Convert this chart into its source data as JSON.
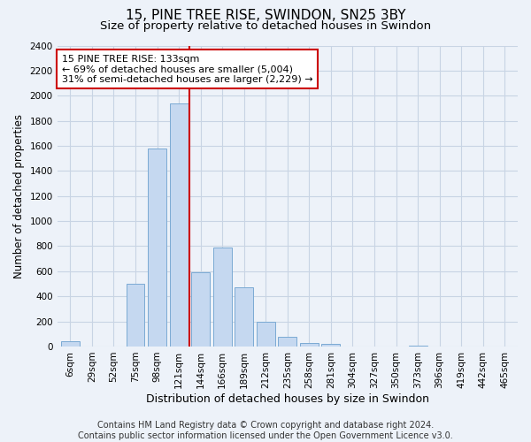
{
  "title": "15, PINE TREE RISE, SWINDON, SN25 3BY",
  "subtitle": "Size of property relative to detached houses in Swindon",
  "xlabel": "Distribution of detached houses by size in Swindon",
  "ylabel": "Number of detached properties",
  "categories": [
    "6sqm",
    "29sqm",
    "52sqm",
    "75sqm",
    "98sqm",
    "121sqm",
    "144sqm",
    "166sqm",
    "189sqm",
    "212sqm",
    "235sqm",
    "258sqm",
    "281sqm",
    "304sqm",
    "327sqm",
    "350sqm",
    "373sqm",
    "396sqm",
    "419sqm",
    "442sqm",
    "465sqm"
  ],
  "values": [
    40,
    0,
    0,
    500,
    1580,
    1940,
    590,
    790,
    470,
    195,
    80,
    30,
    20,
    0,
    0,
    0,
    10,
    0,
    0,
    0,
    0
  ],
  "bar_color": "#c5d8f0",
  "bar_edge_color": "#7baad4",
  "bar_edge_width": 0.7,
  "grid_color": "#c8d4e4",
  "background_color": "#edf2f9",
  "vline_color": "#cc0000",
  "annotation_line1": "15 PINE TREE RISE: 133sqm",
  "annotation_line2": "← 69% of detached houses are smaller (5,004)",
  "annotation_line3": "31% of semi-detached houses are larger (2,229) →",
  "annotation_box_color": "white",
  "annotation_box_edge": "#cc0000",
  "ylim": [
    0,
    2400
  ],
  "yticks": [
    0,
    200,
    400,
    600,
    800,
    1000,
    1200,
    1400,
    1600,
    1800,
    2000,
    2200,
    2400
  ],
  "footnote": "Contains HM Land Registry data © Crown copyright and database right 2024.\nContains public sector information licensed under the Open Government Licence v3.0.",
  "title_fontsize": 11,
  "subtitle_fontsize": 9.5,
  "xlabel_fontsize": 9,
  "ylabel_fontsize": 8.5,
  "tick_fontsize": 7.5,
  "annotation_fontsize": 8,
  "footnote_fontsize": 7
}
